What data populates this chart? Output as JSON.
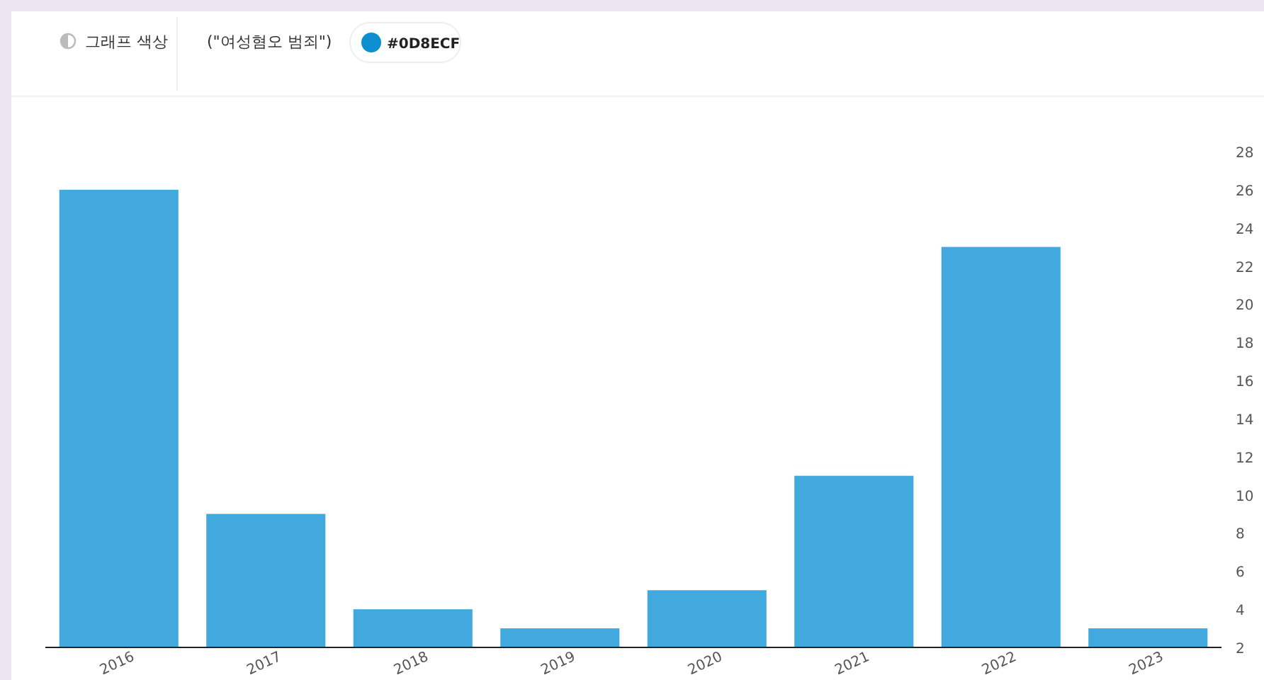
{
  "chart_data": {
    "type": "bar",
    "title": "(\"여성혐오 범죄\")",
    "annotations": [
      "그래프 색상",
      "#0D8ECF"
    ],
    "categories": [
      "2016",
      "2017",
      "2018",
      "2019",
      "2020",
      "2021",
      "2022",
      "2023"
    ],
    "series": [
      {
        "color": "#42a9df",
        "values": [
          26,
          9,
          4,
          3,
          5,
          11,
          23,
          3
        ]
      }
    ],
    "ylim": [
      2,
      28
    ],
    "yticks": [
      2,
      4,
      6,
      8,
      10,
      12,
      14,
      16,
      18,
      20,
      22,
      24,
      26,
      28
    ],
    "grid": false
  }
}
